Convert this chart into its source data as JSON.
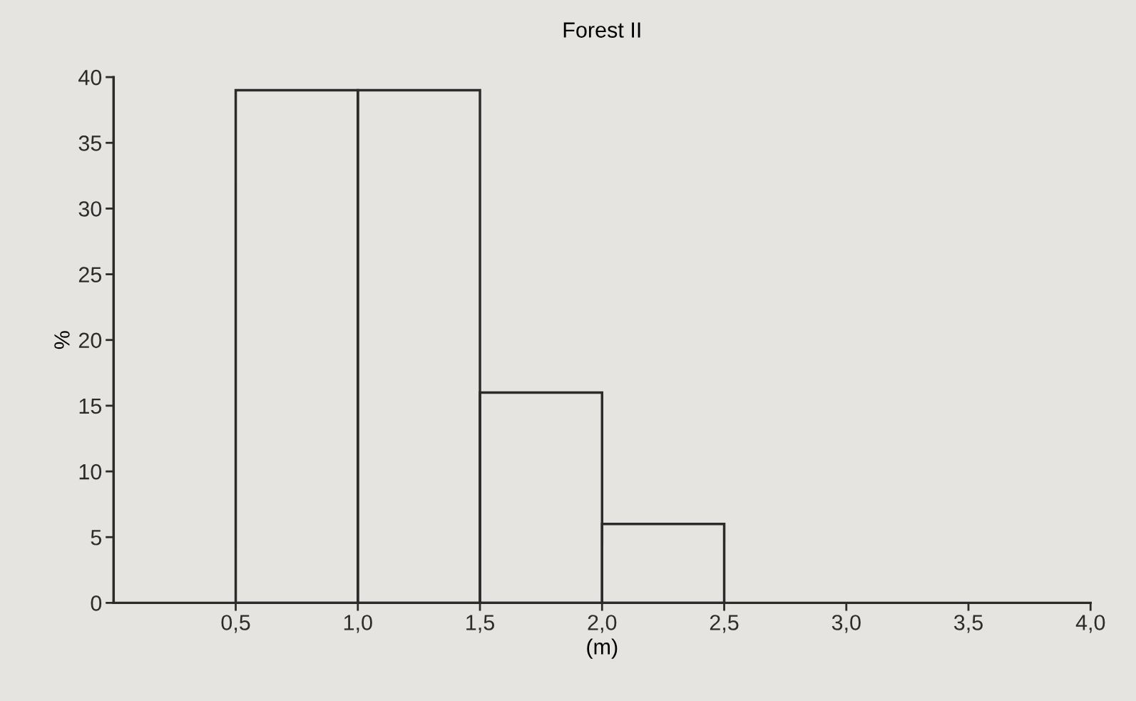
{
  "chart_data": {
    "type": "histogram",
    "title": "Forest II",
    "xlabel": "(m)",
    "ylabel": "%",
    "bins": [
      0.5,
      1.0,
      1.5,
      2.0,
      2.5
    ],
    "values": [
      39,
      39,
      16,
      6
    ],
    "color": "#2b2b2b",
    "xlim": [
      0,
      4
    ],
    "xticks": [
      {
        "value": 0.5,
        "label": "0,5"
      },
      {
        "value": 1.0,
        "label": "1,0"
      },
      {
        "value": 1.5,
        "label": "1,5"
      },
      {
        "value": 2.0,
        "label": "2,0"
      },
      {
        "value": 2.5,
        "label": "2,5"
      },
      {
        "value": 3.0,
        "label": "3,0"
      },
      {
        "value": 3.5,
        "label": "3,5"
      },
      {
        "value": 4.0,
        "label": "4,0"
      }
    ],
    "ylim": [
      0,
      40
    ],
    "yticks": [
      0,
      5,
      10,
      15,
      20,
      25,
      30,
      35,
      40
    ],
    "grid": false
  }
}
